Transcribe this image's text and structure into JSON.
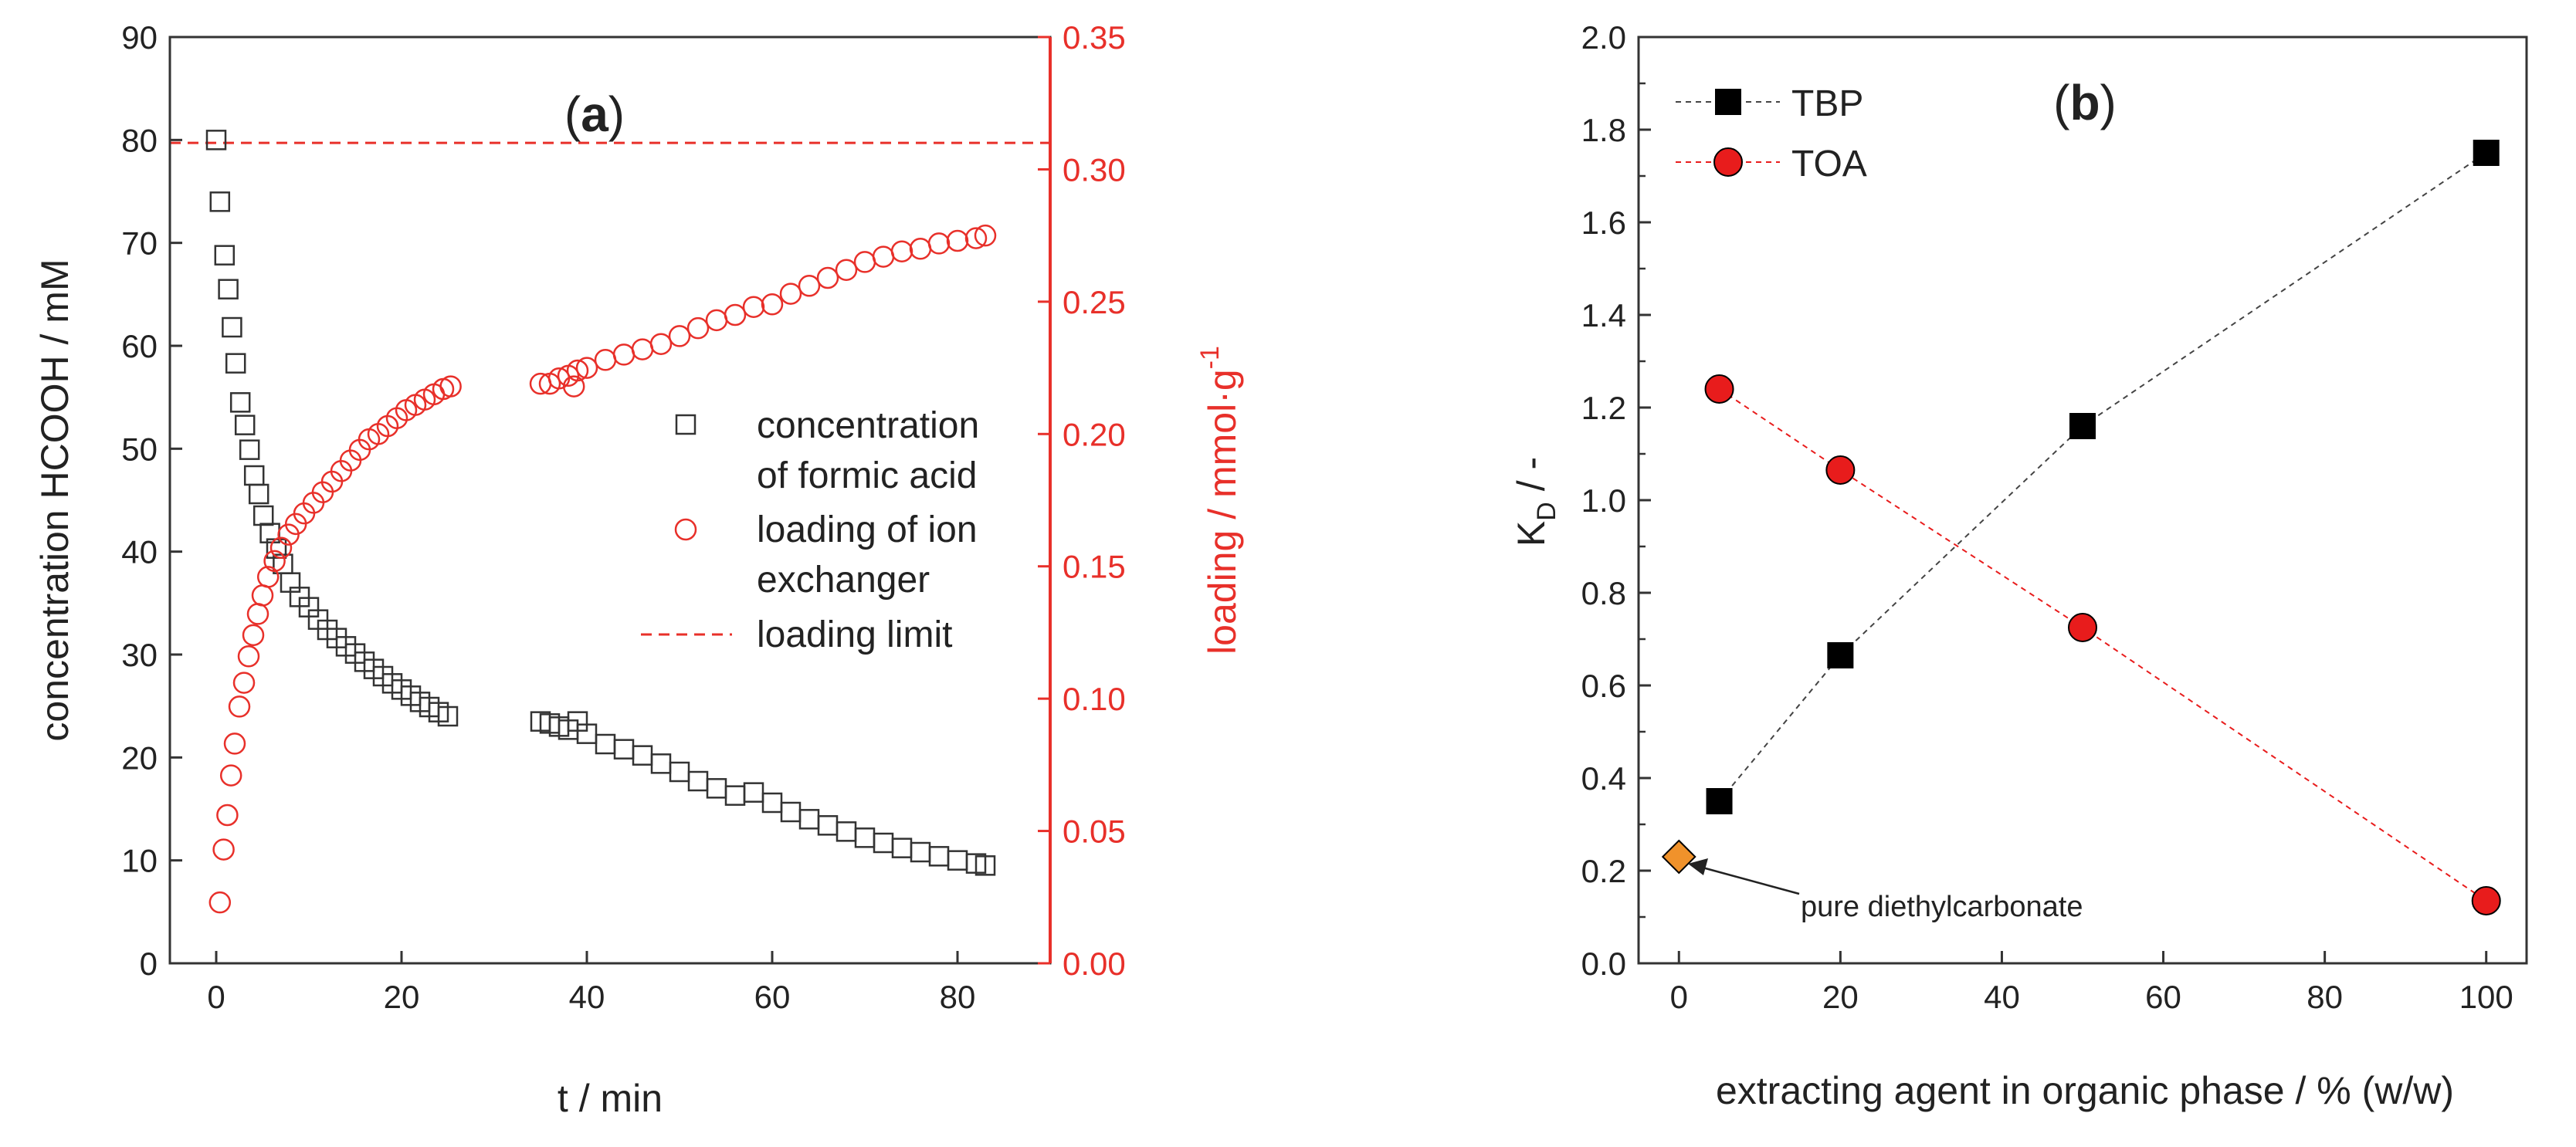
{
  "chart_data": [
    {
      "type": "scatter",
      "panel_label_prefix": "(",
      "panel_label_letter": "a",
      "panel_label_suffix": ")",
      "xlabel": "t / min",
      "ylabel": "concentration HCOOH / mM",
      "y2label": "loading / mmol·g",
      "y2label_sup": "-1",
      "xlim": [
        -5,
        90
      ],
      "ylim": [
        0,
        90
      ],
      "y2lim": [
        0,
        0.35
      ],
      "xticks": [
        "0",
        "20",
        "40",
        "60",
        "80"
      ],
      "yticks": [
        "0",
        "10",
        "20",
        "30",
        "40",
        "50",
        "60",
        "70",
        "80",
        "90"
      ],
      "y2ticks": [
        "0.00",
        "0.05",
        "0.10",
        "0.15",
        "0.20",
        "0.25",
        "0.30",
        "0.35"
      ],
      "legend": [
        {
          "line1": "concentration",
          "line2": "of formic acid"
        },
        {
          "line1": "loading of ion",
          "line2": "exchanger"
        },
        {
          "line1": "loading limit",
          "line2": ""
        }
      ],
      "colors": {
        "concentration": "#333333",
        "loading": "#e8302a",
        "limit": "#e8302a"
      },
      "loading_limit": 0.31,
      "series": [
        {
          "name": "concentration of formic acid",
          "axis": "left",
          "x": [
            0,
            0.4,
            0.9,
            1.3,
            1.7,
            2.1,
            2.6,
            3.1,
            3.6,
            4.1,
            4.6,
            5.1,
            5.8,
            6.5,
            7.2,
            8,
            9,
            10,
            11,
            12,
            13,
            14,
            15,
            16,
            17,
            18,
            19,
            20,
            21,
            22,
            23,
            24,
            25,
            35,
            36,
            37,
            38,
            39,
            40,
            42,
            44,
            46,
            48,
            50,
            52,
            54,
            56,
            58,
            60,
            62,
            64,
            66,
            68,
            70,
            72,
            74,
            76,
            78,
            80,
            82,
            83
          ],
          "y": [
            80,
            74,
            68.8,
            65.5,
            61.8,
            58.3,
            54.5,
            52.3,
            49.9,
            47.4,
            45.6,
            43.5,
            41.8,
            40.3,
            38.8,
            37,
            35.6,
            34.6,
            33.4,
            32.4,
            31.6,
            30.8,
            30.1,
            29.3,
            28.6,
            27.9,
            27.2,
            26.6,
            26,
            25.4,
            24.9,
            24.4,
            24,
            23.5,
            23.3,
            23,
            22.7,
            23.5,
            22.3,
            21.3,
            20.8,
            20.2,
            19.4,
            18.6,
            17.7,
            17,
            16.3,
            16.6,
            15.6,
            14.7,
            14,
            13.4,
            12.8,
            12.2,
            11.7,
            11.2,
            10.8,
            10.4,
            10,
            9.7,
            9.5
          ]
        },
        {
          "name": "loading of ion exchanger",
          "axis": "right",
          "x": [
            0.4,
            0.8,
            1.2,
            1.6,
            2,
            2.5,
            3,
            3.5,
            4,
            4.5,
            5,
            5.6,
            6.3,
            7,
            7.8,
            8.6,
            9.5,
            10.5,
            11.5,
            12.5,
            13.5,
            14.5,
            15.5,
            16.5,
            17.5,
            18.5,
            19.5,
            20.5,
            21.5,
            22.5,
            23.5,
            24.5,
            25.3,
            35,
            36,
            37,
            38,
            38.6,
            39,
            40,
            42,
            44,
            46,
            48,
            50,
            52,
            54,
            56,
            58,
            60,
            62,
            64,
            66,
            68,
            70,
            72,
            74,
            76,
            78,
            80,
            82,
            83
          ],
          "y": [
            0.023,
            0.043,
            0.056,
            0.071,
            0.083,
            0.097,
            0.106,
            0.116,
            0.124,
            0.132,
            0.139,
            0.146,
            0.152,
            0.157,
            0.162,
            0.166,
            0.17,
            0.174,
            0.178,
            0.182,
            0.186,
            0.19,
            0.194,
            0.198,
            0.2,
            0.203,
            0.206,
            0.209,
            0.211,
            0.213,
            0.215,
            0.217,
            0.218,
            0.219,
            0.219,
            0.221,
            0.222,
            0.218,
            0.224,
            0.225,
            0.228,
            0.23,
            0.232,
            0.234,
            0.237,
            0.24,
            0.243,
            0.245,
            0.248,
            0.249,
            0.253,
            0.256,
            0.259,
            0.262,
            0.265,
            0.267,
            0.269,
            0.27,
            0.272,
            0.273,
            0.274,
            0.275
          ]
        }
      ]
    },
    {
      "type": "scatter",
      "panel_label_prefix": "(",
      "panel_label_letter": "b",
      "panel_label_suffix": ")",
      "xlabel": "extracting agent in organic phase / % (w/w)",
      "ylabel_main": "K",
      "ylabel_sub": "D",
      "ylabel_rest": " / -",
      "xlim": [
        -5,
        105
      ],
      "ylim": [
        0,
        2.0
      ],
      "xticks": [
        "0",
        "20",
        "40",
        "60",
        "80",
        "100"
      ],
      "yticks": [
        "0.0",
        "0.2",
        "0.4",
        "0.6",
        "0.8",
        "1.0",
        "1.2",
        "1.4",
        "1.6",
        "1.8",
        "2.0"
      ],
      "colors": {
        "TBP": "#000000",
        "TOA": "#e81c1c",
        "diethylcarbonate": "#f0922b"
      },
      "series": [
        {
          "name": "TBP",
          "x": [
            5,
            20,
            50,
            100
          ],
          "y": [
            0.35,
            0.665,
            1.16,
            1.75
          ]
        },
        {
          "name": "TOA",
          "x": [
            5,
            20,
            50,
            100
          ],
          "y": [
            1.24,
            1.065,
            0.725,
            0.135
          ]
        },
        {
          "name": "pure diethylcarbonate",
          "x": [
            0
          ],
          "y": [
            0.23
          ]
        }
      ],
      "annotation": "pure diethylcarbonate"
    }
  ]
}
